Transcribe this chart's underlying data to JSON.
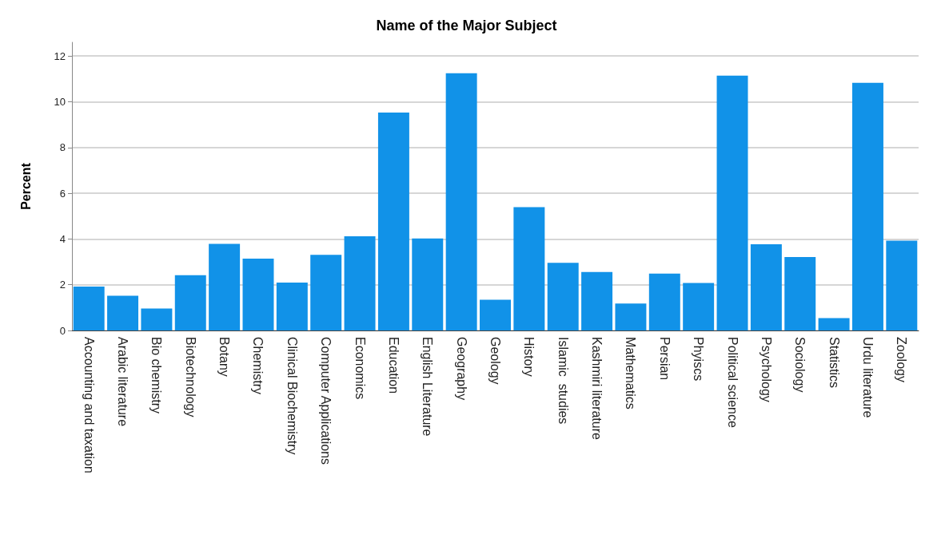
{
  "chart_data": {
    "type": "bar",
    "title": "Name of the Major Subject",
    "ylabel": "Percent",
    "categories": [
      "Accounting and taxation",
      "Arabic literature",
      "Bio chemistry",
      "Biotechnology",
      "Botany",
      "Chemistry",
      "Clinical Biochemistry",
      "Computer Applications",
      "Economics",
      "Education",
      "English Literature",
      "Geography",
      "Geology",
      "History",
      "Islamic  studies",
      "Kashmiri literature",
      "Mathematics",
      "Persian",
      "Phyiscs",
      "Political science",
      "Psychology",
      "Sociology",
      "Statistics",
      "Urdu literature",
      "Zoology"
    ],
    "values": [
      1.92,
      1.52,
      0.96,
      2.42,
      3.79,
      3.14,
      2.09,
      3.31,
      4.12,
      9.53,
      4.02,
      11.25,
      1.34,
      5.39,
      2.96,
      2.56,
      1.18,
      2.49,
      2.08,
      11.14,
      3.77,
      3.21,
      0.54,
      10.83,
      3.93
    ],
    "color": "#1192e8",
    "ylim": [
      0,
      12.6
    ],
    "yticks": [
      0,
      2,
      4,
      6,
      8,
      10,
      12
    ],
    "grid": "y"
  }
}
